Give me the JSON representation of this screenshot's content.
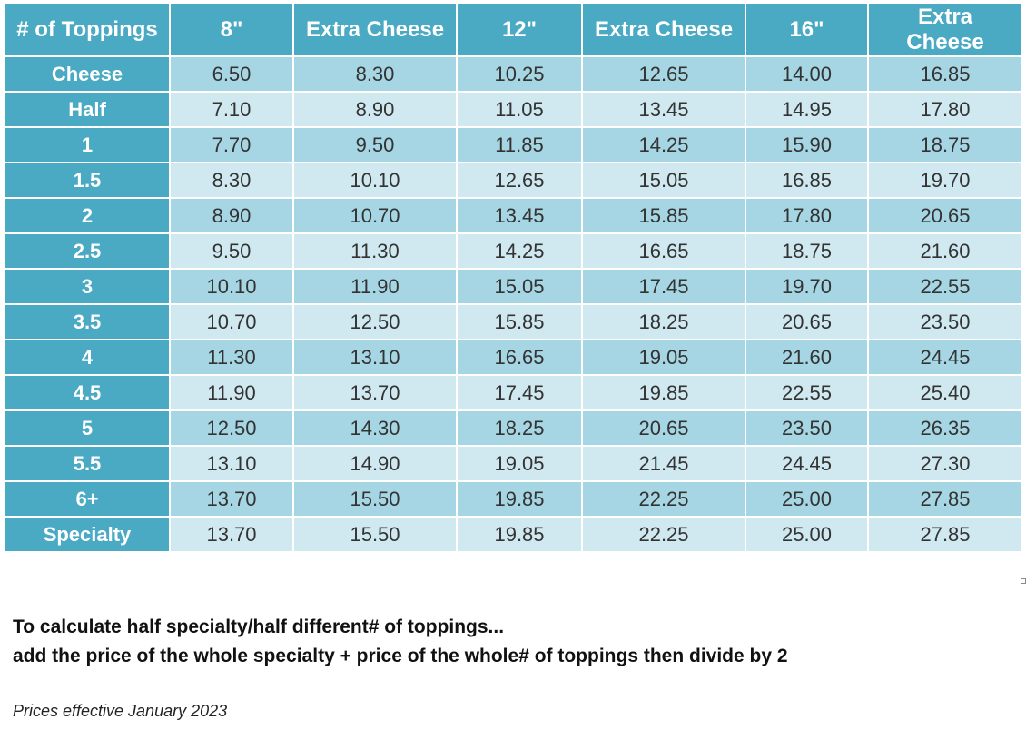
{
  "table": {
    "headers": [
      "# of Toppings",
      "8\"",
      "Extra Cheese",
      "12\"",
      "Extra Cheese",
      "16\"",
      "Extra Cheese"
    ],
    "rows": [
      {
        "label": "Cheese",
        "values": [
          "6.50",
          "8.30",
          "10.25",
          "12.65",
          "14.00",
          "16.85"
        ]
      },
      {
        "label": "Half",
        "values": [
          "7.10",
          "8.90",
          "11.05",
          "13.45",
          "14.95",
          "17.80"
        ]
      },
      {
        "label": "1",
        "values": [
          "7.70",
          "9.50",
          "11.85",
          "14.25",
          "15.90",
          "18.75"
        ]
      },
      {
        "label": "1.5",
        "values": [
          "8.30",
          "10.10",
          "12.65",
          "15.05",
          "16.85",
          "19.70"
        ]
      },
      {
        "label": "2",
        "values": [
          "8.90",
          "10.70",
          "13.45",
          "15.85",
          "17.80",
          "20.65"
        ]
      },
      {
        "label": "2.5",
        "values": [
          "9.50",
          "11.30",
          "14.25",
          "16.65",
          "18.75",
          "21.60"
        ]
      },
      {
        "label": "3",
        "values": [
          "10.10",
          "11.90",
          "15.05",
          "17.45",
          "19.70",
          "22.55"
        ]
      },
      {
        "label": "3.5",
        "values": [
          "10.70",
          "12.50",
          "15.85",
          "18.25",
          "20.65",
          "23.50"
        ]
      },
      {
        "label": "4",
        "values": [
          "11.30",
          "13.10",
          "16.65",
          "19.05",
          "21.60",
          "24.45"
        ]
      },
      {
        "label": "4.5",
        "values": [
          "11.90",
          "13.70",
          "17.45",
          "19.85",
          "22.55",
          "25.40"
        ]
      },
      {
        "label": "5",
        "values": [
          "12.50",
          "14.30",
          "18.25",
          "20.65",
          "23.50",
          "26.35"
        ]
      },
      {
        "label": "5.5",
        "values": [
          "13.10",
          "14.90",
          "19.05",
          "21.45",
          "24.45",
          "27.30"
        ]
      },
      {
        "label": "6+",
        "values": [
          "13.70",
          "15.50",
          "19.85",
          "22.25",
          "25.00",
          "27.85"
        ]
      },
      {
        "label": "Specialty",
        "values": [
          "13.70",
          "15.50",
          "19.85",
          "22.25",
          "25.00",
          "27.85"
        ]
      }
    ]
  },
  "notes": {
    "line1": "To calculate half specialty/half different# of toppings...",
    "line2": "add the price of the whole specialty + price of the whole# of toppings then divide by 2",
    "effective": "Prices effective January 2023"
  },
  "colors": {
    "header_bg": "#4aa9c3",
    "row_dark": "#a6d6e4",
    "row_light": "#d0e9f1"
  }
}
